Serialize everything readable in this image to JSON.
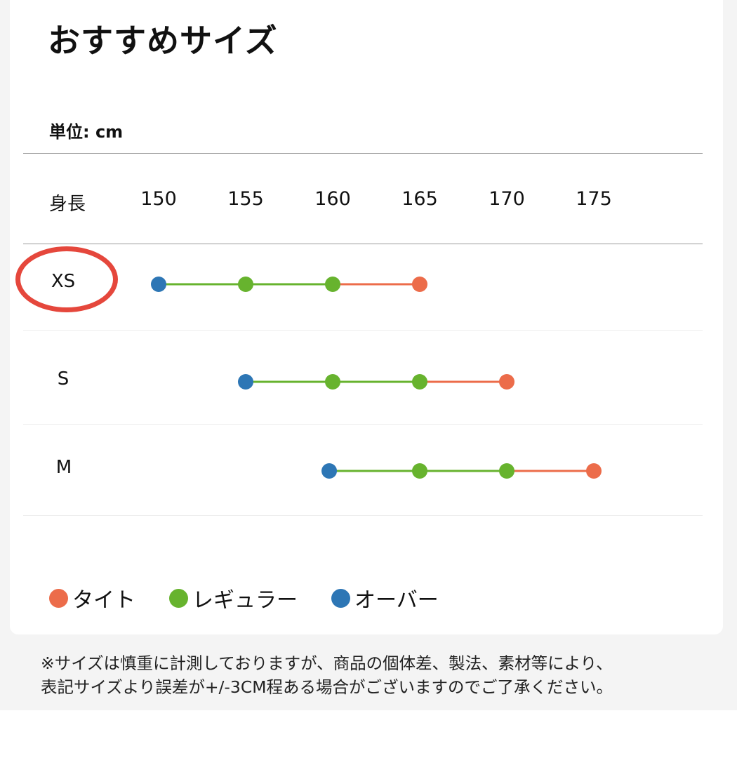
{
  "title": "おすすめサイズ",
  "unit_label": "単位: cm",
  "chart_data": {
    "type": "line",
    "xlabel": "身長",
    "x_ticks": [
      150,
      155,
      160,
      165,
      170,
      175
    ],
    "categories": [
      "XS",
      "S",
      "M"
    ],
    "series": [
      {
        "name": "オーバー",
        "color": "#2d76b5",
        "values": [
          150,
          155,
          159.8
        ]
      },
      {
        "name": "レギュラー",
        "color": "#67b32e",
        "values": [
          [
            155,
            160
          ],
          [
            160,
            165
          ],
          [
            165,
            170
          ]
        ]
      },
      {
        "name": "タイト",
        "color": "#ec6c4a",
        "values": [
          165,
          170,
          175
        ]
      }
    ],
    "highlighted_category": "XS"
  },
  "legend": [
    {
      "label": "タイト",
      "color": "#ec6c4a"
    },
    {
      "label": "レギュラー",
      "color": "#67b32e"
    },
    {
      "label": "オーバー",
      "color": "#2d76b5"
    }
  ],
  "note": {
    "line1": "※サイズは慎重に計測しておりますが、商品の個体差、製法、素材等により、",
    "line2": "表記サイズより誤差が+/-3CM程ある場合がございますのでご了承ください。"
  }
}
